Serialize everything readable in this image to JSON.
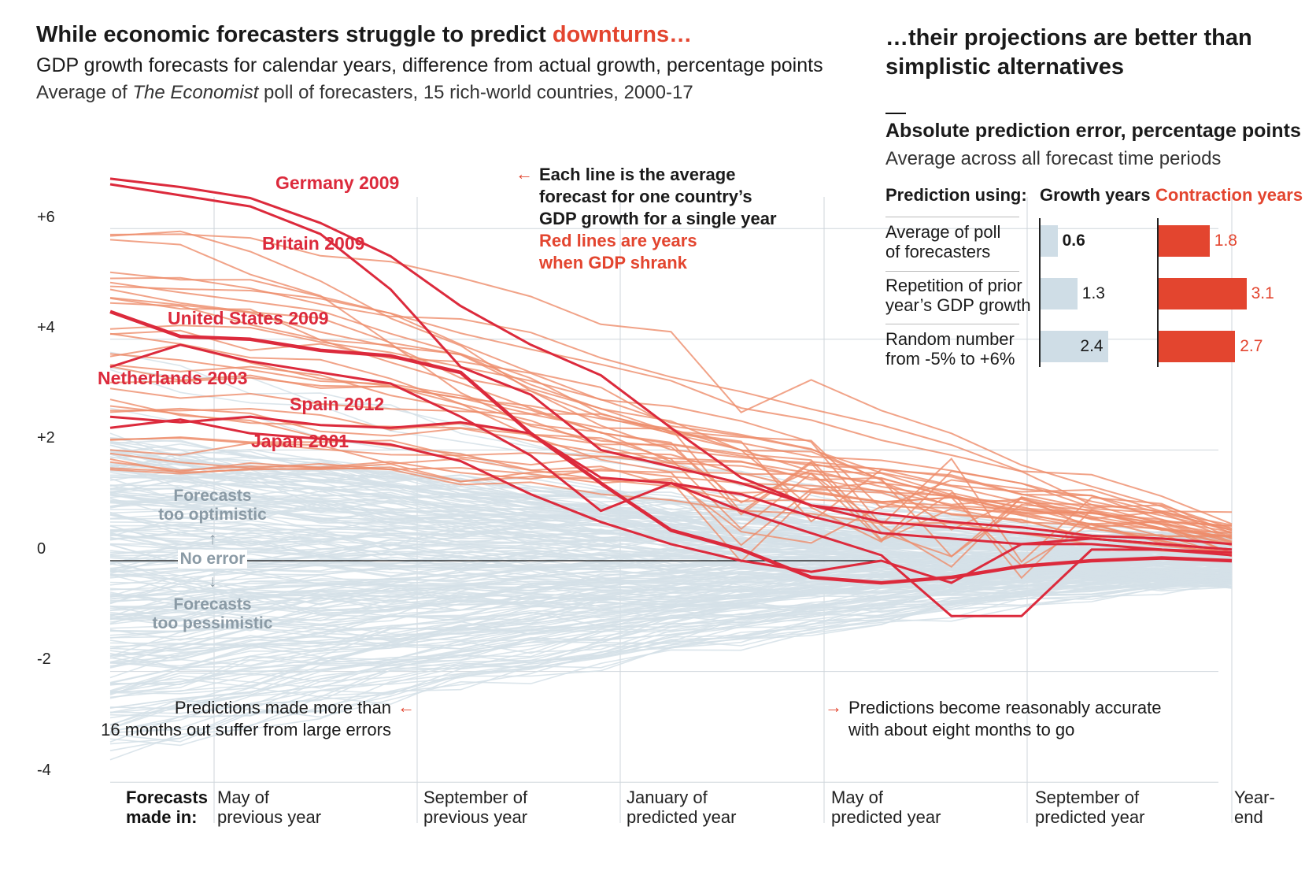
{
  "left_title": {
    "main": "While economic forecasters struggle to predict ",
    "main_highlight": "downturns…",
    "subtitle": "GDP growth forecasts for calendar years, difference from actual growth, percentage points",
    "source_pre": "Average of ",
    "source_italic": "The Economist",
    "source_post": " poll of forecasters, 15 rich-world countries, 2000-17"
  },
  "right_title": {
    "line1": "…their projections are better than",
    "line2": "simplistic alternatives",
    "table_title": "Absolute prediction error, percentage points",
    "table_subtitle": "Average across all forecast time periods",
    "col_prediction": "Prediction using:",
    "col_growth": "Growth years",
    "col_contraction": "Contraction years",
    "rows": [
      {
        "label": "Average of poll\nof forecasters",
        "growth": 0.6,
        "growth_label": "0.6",
        "contraction": 1.8,
        "contraction_label": "1.8"
      },
      {
        "label": "Repetition of prior\nyear’s GDP growth",
        "growth": 1.3,
        "growth_label": "1.3",
        "contraction": 3.1,
        "contraction_label": "3.1"
      },
      {
        "label": "Random number\nfrom -5% to +6%",
        "growth": 2.4,
        "growth_label": "2.4",
        "contraction": 2.7,
        "contraction_label": "2.7"
      }
    ],
    "colors": {
      "growth": "#cfdde6",
      "contraction": "#e3452f"
    }
  },
  "annotations": {
    "each_line_1": "Each line is the average",
    "each_line_2": "forecast for one country’s",
    "each_line_3": "GDP growth for a single year",
    "red_lines_1": "Red lines are years",
    "red_lines_2": "when GDP shrank",
    "arrow_left": "←",
    "arrow_right": "→",
    "early_errors": "Predictions made more than\n16 months out suffer from large errors",
    "accurate": "Predictions become reasonably accurate\nwith about eight months to go",
    "too_optimistic": "Forecasts\ntoo optimistic",
    "up_arrow": "↑",
    "no_error": "No error",
    "down_arrow": "↓",
    "too_pessimistic": "Forecasts\ntoo pessimistic"
  },
  "chart_data": {
    "type": "line",
    "ylim": [
      -4,
      7
    ],
    "y_ticks": [
      {
        "value": 6,
        "label": "+6"
      },
      {
        "value": 4,
        "label": "+4"
      },
      {
        "value": 2,
        "label": "+2"
      },
      {
        "value": 0,
        "label": "0"
      },
      {
        "value": -2,
        "label": "-2"
      },
      {
        "value": -4,
        "label": "-4"
      }
    ],
    "x_header": "Forecasts\nmade in:",
    "x_categories": [
      "May of\nprevious year",
      "September of\nprevious year",
      "January of\npredicted year",
      "May of\npredicted year",
      "September of\npredicted year",
      "Year-\nend"
    ],
    "highlighted_series": [
      {
        "name": "Germany 2009",
        "values": [
          6.9,
          6.75,
          6.55,
          6.1,
          5.5,
          4.6,
          3.9,
          3.35,
          2.4,
          1.5,
          1.0,
          0.85,
          0.7,
          0.6,
          0.45,
          0.4,
          0.3
        ],
        "bold": false
      },
      {
        "name": "Britain 2009",
        "values": [
          6.8,
          6.6,
          6.4,
          5.9,
          4.9,
          3.5,
          3.0,
          2.0,
          1.7,
          1.4,
          1.0,
          0.7,
          0.6,
          0.5,
          0.4,
          0.3,
          0.2
        ],
        "bold": false
      },
      {
        "name": "United States 2009",
        "values": [
          4.5,
          4.05,
          4.0,
          3.8,
          3.7,
          3.4,
          2.3,
          1.4,
          0.55,
          0.2,
          -0.3,
          -0.4,
          -0.3,
          -0.1,
          0.0,
          0.05,
          0.0
        ],
        "bold": true
      },
      {
        "name": "Netherlands 2003",
        "values": [
          3.5,
          3.9,
          3.6,
          3.4,
          3.2,
          2.6,
          1.9,
          0.9,
          1.4,
          1.2,
          0.8,
          0.5,
          0.4,
          0.3,
          0.3,
          0.2,
          0.15
        ],
        "bold": false
      },
      {
        "name": "Spain 2012",
        "values": [
          2.6,
          2.5,
          2.6,
          2.45,
          2.4,
          2.5,
          2.3,
          1.5,
          1.4,
          0.9,
          0.5,
          0.1,
          -1.0,
          -1.0,
          0.2,
          0.2,
          0.1
        ],
        "bold": false
      },
      {
        "name": "Japan 2001",
        "values": [
          2.4,
          2.55,
          2.3,
          2.2,
          2.1,
          1.8,
          1.2,
          0.7,
          0.3,
          0.0,
          -0.2,
          0.0,
          -0.4,
          0.3,
          0.4,
          0.3,
          0.2
        ],
        "bold": false
      }
    ],
    "colors": {
      "red": "#dc2a3c",
      "salmon": "#ee8c6a",
      "gray": "#d5e0e7",
      "zero": "#111111",
      "grid": "#cfd6db"
    }
  }
}
